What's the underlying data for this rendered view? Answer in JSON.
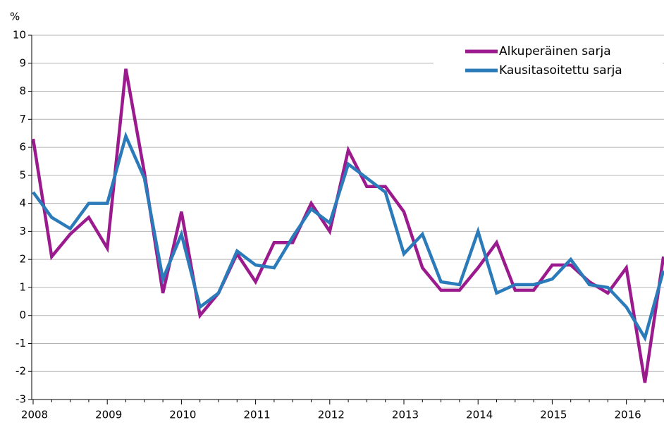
{
  "chart_data": {
    "type": "line",
    "y_label": "%",
    "categories": [
      "2008",
      null,
      null,
      null,
      "2009",
      null,
      null,
      null,
      "2010",
      null,
      null,
      null,
      "2011",
      null,
      null,
      null,
      "2012",
      null,
      null,
      null,
      "2013",
      null,
      null,
      null,
      "2014",
      null,
      null,
      null,
      "2015",
      null,
      null,
      null,
      "2016",
      null,
      null
    ],
    "series": [
      {
        "name": "Alkuperäinen sarja",
        "color": "#9b1b8e",
        "values": [
          6.3,
          2.1,
          2.9,
          3.5,
          2.4,
          8.8,
          5.1,
          0.8,
          3.7,
          0.0,
          0.8,
          2.2,
          1.2,
          2.6,
          2.6,
          4.0,
          3.0,
          5.9,
          4.6,
          4.6,
          3.7,
          1.7,
          0.9,
          0.9,
          1.7,
          2.6,
          0.9,
          0.9,
          1.8,
          1.8,
          1.2,
          0.8,
          1.7,
          -2.4,
          2.1
        ]
      },
      {
        "name": "Kausitasoitettu sarja",
        "color": "#2b7bba",
        "values": [
          4.4,
          3.5,
          3.1,
          4.0,
          4.0,
          6.4,
          4.9,
          1.3,
          2.9,
          0.3,
          0.8,
          2.3,
          1.8,
          1.7,
          2.8,
          3.8,
          3.3,
          5.4,
          4.9,
          4.4,
          2.2,
          2.9,
          1.2,
          1.1,
          3.0,
          0.8,
          1.1,
          1.1,
          1.3,
          2.0,
          1.1,
          1.0,
          0.3,
          -0.8,
          1.6
        ]
      }
    ],
    "ylim": [
      -3,
      10
    ],
    "yticks": [
      -3,
      -2,
      -1,
      0,
      1,
      2,
      3,
      4,
      5,
      6,
      7,
      8,
      9,
      10
    ],
    "grid": true,
    "legend": "top-right"
  }
}
